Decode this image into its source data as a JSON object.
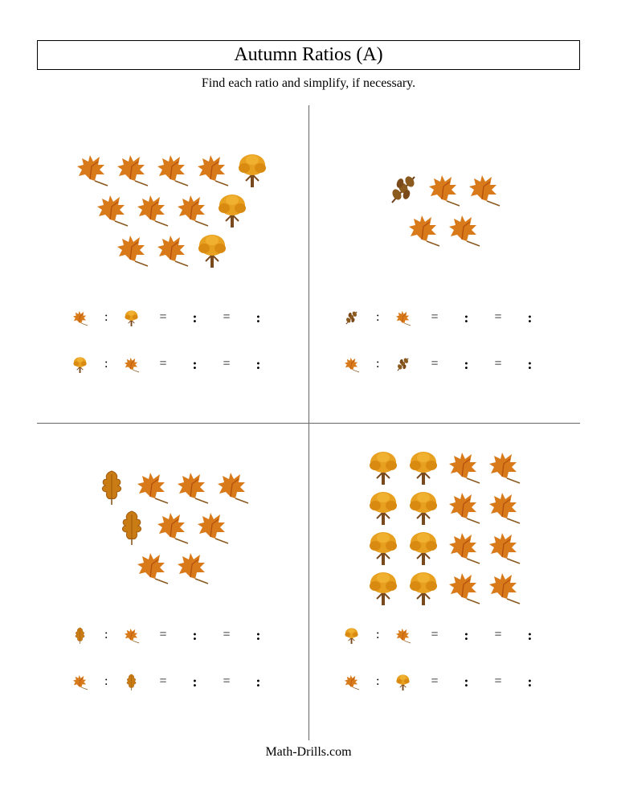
{
  "title": "Autumn Ratios (A)",
  "subtitle": "Find each ratio and simplify, if necessary.",
  "footer": "Math-Drills.com",
  "icons": {
    "maple_leaf": {
      "fill": "#d87a1a",
      "accent": "#b55210"
    },
    "tree": {
      "trunk": "#7a4a1f",
      "foliage": "#e8a020"
    },
    "oak_branch": {
      "stem": "#6b3c16",
      "leaf": "#8b5a1f"
    },
    "oak_leaf": {
      "fill": "#c97b14",
      "outline": "#a05a0e"
    }
  },
  "quadrants": [
    {
      "rows": [
        [
          "maple_leaf",
          "maple_leaf",
          "maple_leaf",
          "maple_leaf",
          "tree"
        ],
        [
          "maple_leaf",
          "maple_leaf",
          "maple_leaf",
          "tree"
        ],
        [
          "maple_leaf",
          "maple_leaf",
          "tree"
        ]
      ],
      "answer_pairs": [
        [
          "maple_leaf",
          "tree"
        ],
        [
          "tree",
          "maple_leaf"
        ]
      ]
    },
    {
      "rows": [
        [
          "oak_branch",
          "maple_leaf",
          "maple_leaf"
        ],
        [
          "maple_leaf",
          "maple_leaf"
        ]
      ],
      "answer_pairs": [
        [
          "oak_branch",
          "maple_leaf"
        ],
        [
          "maple_leaf",
          "oak_branch"
        ]
      ]
    },
    {
      "rows": [
        [
          "oak_leaf",
          "maple_leaf",
          "maple_leaf",
          "maple_leaf"
        ],
        [
          "oak_leaf",
          "maple_leaf",
          "maple_leaf"
        ],
        [
          "maple_leaf",
          "maple_leaf"
        ]
      ],
      "answer_pairs": [
        [
          "oak_leaf",
          "maple_leaf"
        ],
        [
          "maple_leaf",
          "oak_leaf"
        ]
      ]
    },
    {
      "rows": [
        [
          "tree",
          "tree",
          "maple_leaf",
          "maple_leaf"
        ],
        [
          "tree",
          "tree",
          "maple_leaf",
          "maple_leaf"
        ],
        [
          "tree",
          "tree",
          "maple_leaf",
          "maple_leaf"
        ],
        [
          "tree",
          "tree",
          "maple_leaf",
          "maple_leaf"
        ]
      ],
      "answer_pairs": [
        [
          "tree",
          "maple_leaf"
        ],
        [
          "maple_leaf",
          "tree"
        ]
      ]
    }
  ],
  "eq": "=",
  "colon": ":"
}
